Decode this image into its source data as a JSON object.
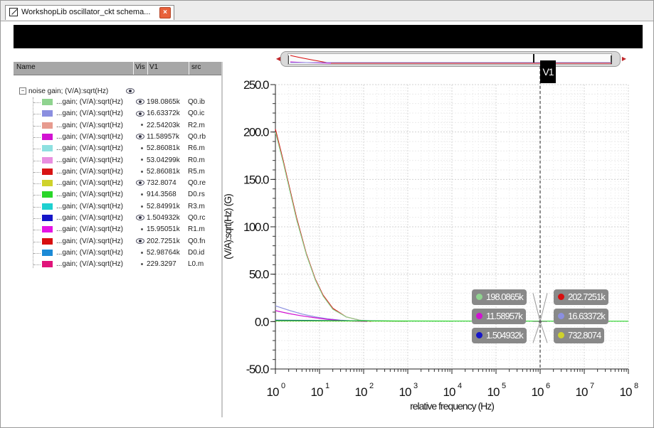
{
  "tab": {
    "title": "WorkshopLib oscillator_ckt schema...",
    "close_glyph": "×"
  },
  "panel": {
    "columns": {
      "name": "Name",
      "vis": "Vis",
      "v1": "V1",
      "src": "src"
    },
    "root_label": "noise gain; (V/A):sqrt(Hz)",
    "root_toggle": "−",
    "rows": [
      {
        "name": "...gain; (V/A):sqrt(Hz)",
        "color": "#8fd38f",
        "visible": true,
        "value": "198.0865k",
        "src": "Q0.ib"
      },
      {
        "name": "...gain; (V/A):sqrt(Hz)",
        "color": "#8b8fe0",
        "visible": true,
        "value": "16.63372k",
        "src": "Q0.ic"
      },
      {
        "name": "...gain; (V/A):sqrt(Hz)",
        "color": "#e79b8f",
        "visible": false,
        "value": "22.54203k",
        "src": "R2.m"
      },
      {
        "name": "...gain; (V/A):sqrt(Hz)",
        "color": "#d212d2",
        "visible": true,
        "value": "11.58957k",
        "src": "Q0.rb"
      },
      {
        "name": "...gain; (V/A):sqrt(Hz)",
        "color": "#8ee0e0",
        "visible": false,
        "value": "52.86081k",
        "src": "R6.m"
      },
      {
        "name": "...gain; (V/A):sqrt(Hz)",
        "color": "#e88fe0",
        "visible": false,
        "value": "53.04299k",
        "src": "R0.m"
      },
      {
        "name": "...gain; (V/A):sqrt(Hz)",
        "color": "#d81414",
        "visible": false,
        "value": "52.86081k",
        "src": "R5.m"
      },
      {
        "name": "...gain; (V/A):sqrt(Hz)",
        "color": "#cfd22b",
        "visible": true,
        "value": "732.8074",
        "src": "Q0.re"
      },
      {
        "name": "...gain; (V/A):sqrt(Hz)",
        "color": "#29d629",
        "visible": false,
        "value": "914.3568",
        "src": "D0.rs"
      },
      {
        "name": "...gain; (V/A):sqrt(Hz)",
        "color": "#1ed0d0",
        "visible": false,
        "value": "52.84991k",
        "src": "R3.m"
      },
      {
        "name": "...gain; (V/A):sqrt(Hz)",
        "color": "#1616c8",
        "visible": true,
        "value": "1.504932k",
        "src": "Q0.rc"
      },
      {
        "name": "...gain; (V/A):sqrt(Hz)",
        "color": "#e414e4",
        "visible": false,
        "value": "15.95051k",
        "src": "R1.m"
      },
      {
        "name": "...gain; (V/A):sqrt(Hz)",
        "color": "#d80f0f",
        "visible": true,
        "value": "202.7251k",
        "src": "Q0.fn"
      },
      {
        "name": "...gain; (V/A):sqrt(Hz)",
        "color": "#1c8ad6",
        "visible": false,
        "value": "52.98764k",
        "src": "D0.id"
      },
      {
        "name": "...gain; (V/A):sqrt(Hz)",
        "color": "#e0147a",
        "visible": false,
        "value": "229.3297",
        "src": "L0.m"
      }
    ]
  },
  "cursor": {
    "label": "V1",
    "at_exponent": 6
  },
  "markers_left": [
    {
      "value": "198.0865k",
      "color": "#8fd38f"
    },
    {
      "value": "11.58957k",
      "color": "#d212d2"
    },
    {
      "value": "1.504932k",
      "color": "#1616c8"
    }
  ],
  "markers_right": [
    {
      "value": "202.7251k",
      "color": "#d80f0f"
    },
    {
      "value": "16.63372k",
      "color": "#8b8fe0"
    },
    {
      "value": "732.8074",
      "color": "#cfd22b"
    }
  ],
  "chart_data": {
    "type": "line",
    "xlabel": "relative frequency (Hz)",
    "ylabel": "(V/A):sqrt(Hz) (G)",
    "xscale": "log",
    "xlim_exp": [
      0,
      8
    ],
    "ylim": [
      -50,
      250
    ],
    "yticks": [
      "250.0",
      "200.0",
      "150.0",
      "100.0",
      "50.0",
      "0.0",
      "-50.0"
    ],
    "xtick_base": "10",
    "xtick_exponents": [
      "0",
      "1",
      "2",
      "3",
      "4",
      "5",
      "6",
      "7",
      "8"
    ],
    "grid": true,
    "series": [
      {
        "color": "#d80f0f",
        "x": [
          1,
          1.5,
          2,
          3,
          5,
          8,
          12,
          20,
          40,
          80,
          150
        ],
        "y": [
          203,
          170,
          145,
          110,
          72,
          45,
          28,
          14,
          5,
          1.5,
          0.3
        ]
      },
      {
        "color": "#8fd38f",
        "x": [
          1,
          1.5,
          2,
          3,
          5,
          8,
          12,
          20,
          40,
          80,
          150,
          1000
        ],
        "y": [
          200,
          168,
          143,
          108,
          71,
          44,
          27,
          13,
          5,
          1.5,
          0.8,
          0.4
        ]
      },
      {
        "color": "#8b8fe0",
        "x": [
          1,
          2,
          4,
          8,
          15,
          30,
          60,
          120
        ],
        "y": [
          16.6,
          12,
          8,
          5,
          3,
          1.5,
          0.7,
          0.2
        ]
      },
      {
        "color": "#d212d2",
        "x": [
          1,
          2,
          4,
          8,
          15,
          30,
          60,
          120
        ],
        "y": [
          11.6,
          8.5,
          6,
          4,
          2.4,
          1.2,
          0.5,
          0.1
        ]
      },
      {
        "color": "#1616c8",
        "x": [
          1,
          10,
          1000
        ],
        "y": [
          1.5,
          1.2,
          0.5
        ]
      },
      {
        "color": "#cfd22b",
        "x": [
          1,
          1000
        ],
        "y": [
          0.7,
          0.5
        ]
      },
      {
        "color": "#29d629",
        "x": [
          1,
          1000,
          100000000
        ],
        "y": [
          0.9,
          0.6,
          0.4
        ]
      }
    ]
  }
}
